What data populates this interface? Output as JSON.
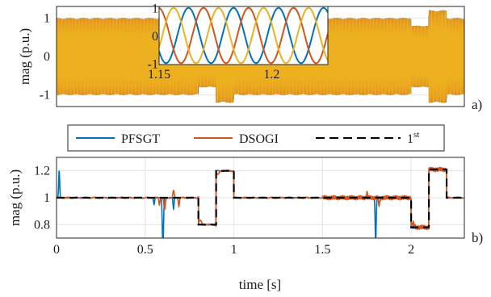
{
  "chart_data": [
    {
      "panel": "a)",
      "type": "line",
      "ylabel": "mag (p.u.)",
      "xlim": [
        0,
        2.3
      ],
      "ylim": [
        -1.3,
        1.3
      ],
      "yticks": [
        "-1",
        "0",
        "1"
      ],
      "description_values": {
        "signal": "three-phase voltage, amplitude envelope in p.u.",
        "envelope": [
          {
            "t0": 0.0,
            "t1": 0.6,
            "amp": 1.0
          },
          {
            "t0": 0.6,
            "t1": 0.65,
            "amp": 1.0
          },
          {
            "t0": 0.8,
            "t1": 0.9,
            "amp": 0.8
          },
          {
            "t0": 0.9,
            "t1": 1.0,
            "amp": 1.2
          },
          {
            "t0": 1.0,
            "t1": 2.0,
            "amp": 1.0
          },
          {
            "t0": 2.0,
            "t1": 2.1,
            "amp": 0.8
          },
          {
            "t0": 2.1,
            "t1": 2.2,
            "amp": 1.2
          },
          {
            "t0": 2.2,
            "t1": 2.3,
            "amp": 1.0
          }
        ]
      },
      "series_colors": [
        "#0072BD",
        "#D95319",
        "#EDB120"
      ],
      "inset": {
        "xticks": [
          "1.15",
          "1.2"
        ],
        "yticks": [
          "-1",
          "0",
          "1"
        ],
        "xlim": [
          1.15,
          1.225
        ],
        "ylim": [
          -1.05,
          1.05
        ]
      }
    },
    {
      "panel": "b)",
      "type": "line",
      "xlabel": "time [s]",
      "ylabel": "mag (p.u.)",
      "xlim": [
        0,
        2.3
      ],
      "ylim": [
        0.7,
        1.3
      ],
      "xticks": [
        "0",
        "0.5",
        "1",
        "1.5",
        "2"
      ],
      "yticks": [
        "0.8",
        "1",
        "1.2"
      ],
      "legend_position": "top",
      "series": [
        {
          "name": "PFSGT",
          "color": "#0072BD",
          "style": "solid"
        },
        {
          "name": "DSOGI",
          "color": "#D95319",
          "style": "solid"
        },
        {
          "name": "1",
          "superscript": "st",
          "color": "#000000",
          "style": "dashed"
        }
      ],
      "reference": {
        "x": [
          0,
          0.8,
          0.8,
          0.9,
          0.9,
          1.0,
          1.0,
          2.0,
          2.0,
          2.1,
          2.1,
          2.2,
          2.2,
          2.3
        ],
        "y": [
          1.0,
          1.0,
          0.8,
          0.8,
          1.2,
          1.2,
          1.0,
          1.0,
          0.78,
          0.78,
          1.21,
          1.21,
          1.0,
          1.0
        ]
      }
    }
  ]
}
